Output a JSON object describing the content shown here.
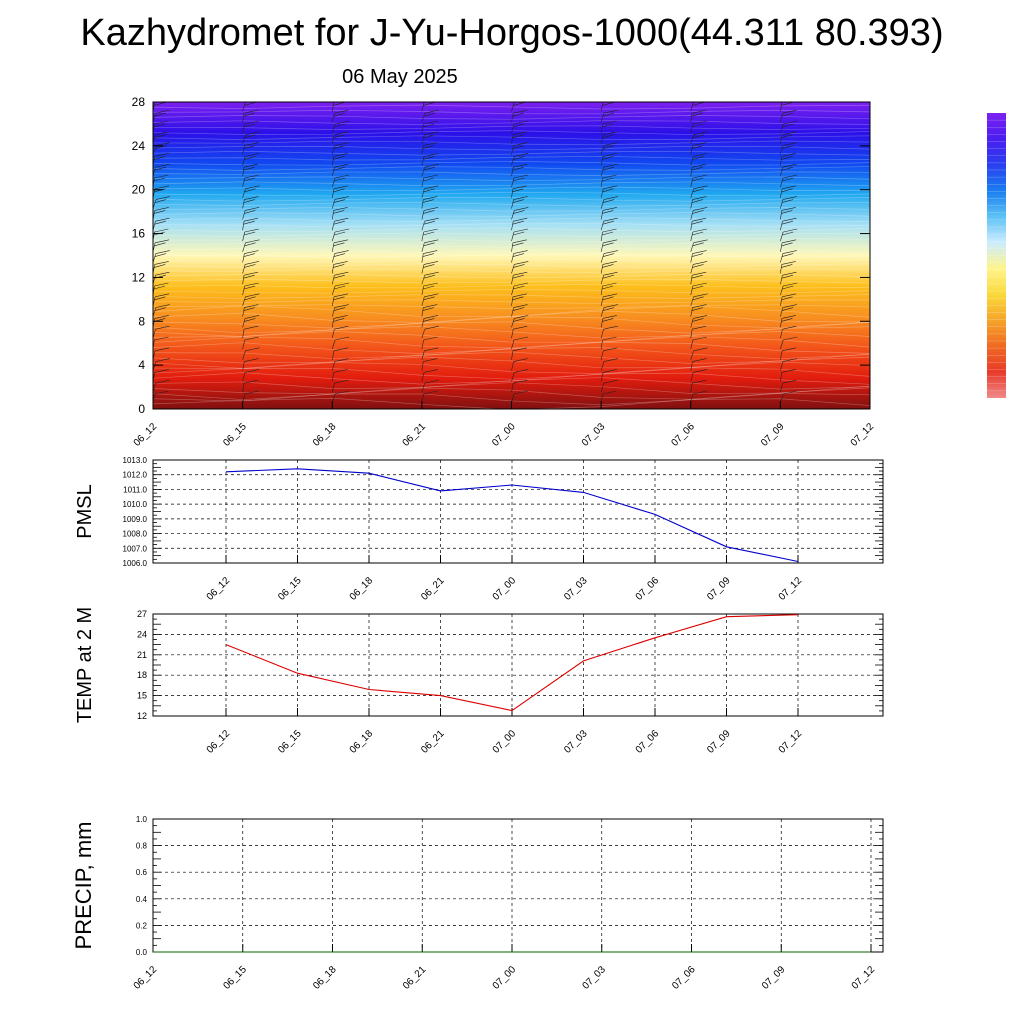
{
  "header": {
    "title": "Kazhydromet for J-Yu-Horgos-1000(44.311 80.393)",
    "date": "06 May 2025"
  },
  "chart_data": [
    {
      "type": "heatmap",
      "name": "vertical-cross-section",
      "x_ticks": [
        "06_12",
        "06_15",
        "06_18",
        "06_21",
        "07_00",
        "07_03",
        "07_06",
        "07_09",
        "07_12"
      ],
      "y_ticks": [
        0,
        4,
        8,
        12,
        16,
        20,
        24,
        28
      ],
      "ylim": [
        0,
        28
      ],
      "color_stops": [
        "#7f1010",
        "#e21c0e",
        "#f3541a",
        "#f89020",
        "#fdbf1c",
        "#fff8b8",
        "#a6e0f5",
        "#20a8f0",
        "#1048f0",
        "#2c10e8",
        "#7c20f0"
      ],
      "colorbar_colors": [
        "#f08a8a",
        "#e83a2a",
        "#f06a22",
        "#f5a52a",
        "#fbd93a",
        "#fff48c",
        "#ccecff",
        "#5cc2f5",
        "#1a7ef0",
        "#2a3ff0",
        "#4a1ef0",
        "#7c20f0"
      ]
    },
    {
      "type": "line",
      "name": "pmsl",
      "ylabel": "PMSL",
      "categories": [
        "06_12",
        "06_15",
        "06_18",
        "06_21",
        "07_00",
        "07_03",
        "07_06",
        "07_09",
        "07_12"
      ],
      "values": [
        1012.2,
        1012.4,
        1012.1,
        1010.9,
        1011.3,
        1010.8,
        1009.3,
        1007.1,
        1006.1
      ],
      "y_ticks": [
        "1006.0",
        "1007.0",
        "1008.0",
        "1009.0",
        "1010.0",
        "1011.0",
        "1012.0",
        "1013.0"
      ],
      "ylim": [
        1006,
        1013
      ],
      "color": "#0000cc"
    },
    {
      "type": "line",
      "name": "temp-2m",
      "ylabel": "TEMP at 2 M",
      "categories": [
        "06_12",
        "06_15",
        "06_18",
        "06_21",
        "07_00",
        "07_03",
        "07_06",
        "07_09",
        "07_12"
      ],
      "values": [
        22.5,
        18.3,
        15.9,
        15.0,
        12.8,
        20.1,
        23.5,
        26.6,
        26.9
      ],
      "y_ticks": [
        "12",
        "15",
        "18",
        "21",
        "24",
        "27"
      ],
      "ylim": [
        12,
        27
      ],
      "color": "#dd0000"
    },
    {
      "type": "line",
      "name": "precip",
      "ylabel": "PRECIP, mm",
      "x_ticks": [
        "06_12",
        "06_15",
        "06_18",
        "06_21",
        "07_00",
        "07_03",
        "07_06",
        "07_09",
        "07_12"
      ],
      "values": [
        0,
        0,
        0,
        0,
        0,
        0,
        0,
        0,
        0
      ],
      "y_ticks": [
        "0.0",
        "0.2",
        "0.4",
        "0.6",
        "0.8",
        "1.0"
      ],
      "ylim": [
        0,
        1
      ],
      "color": "#006600"
    }
  ]
}
